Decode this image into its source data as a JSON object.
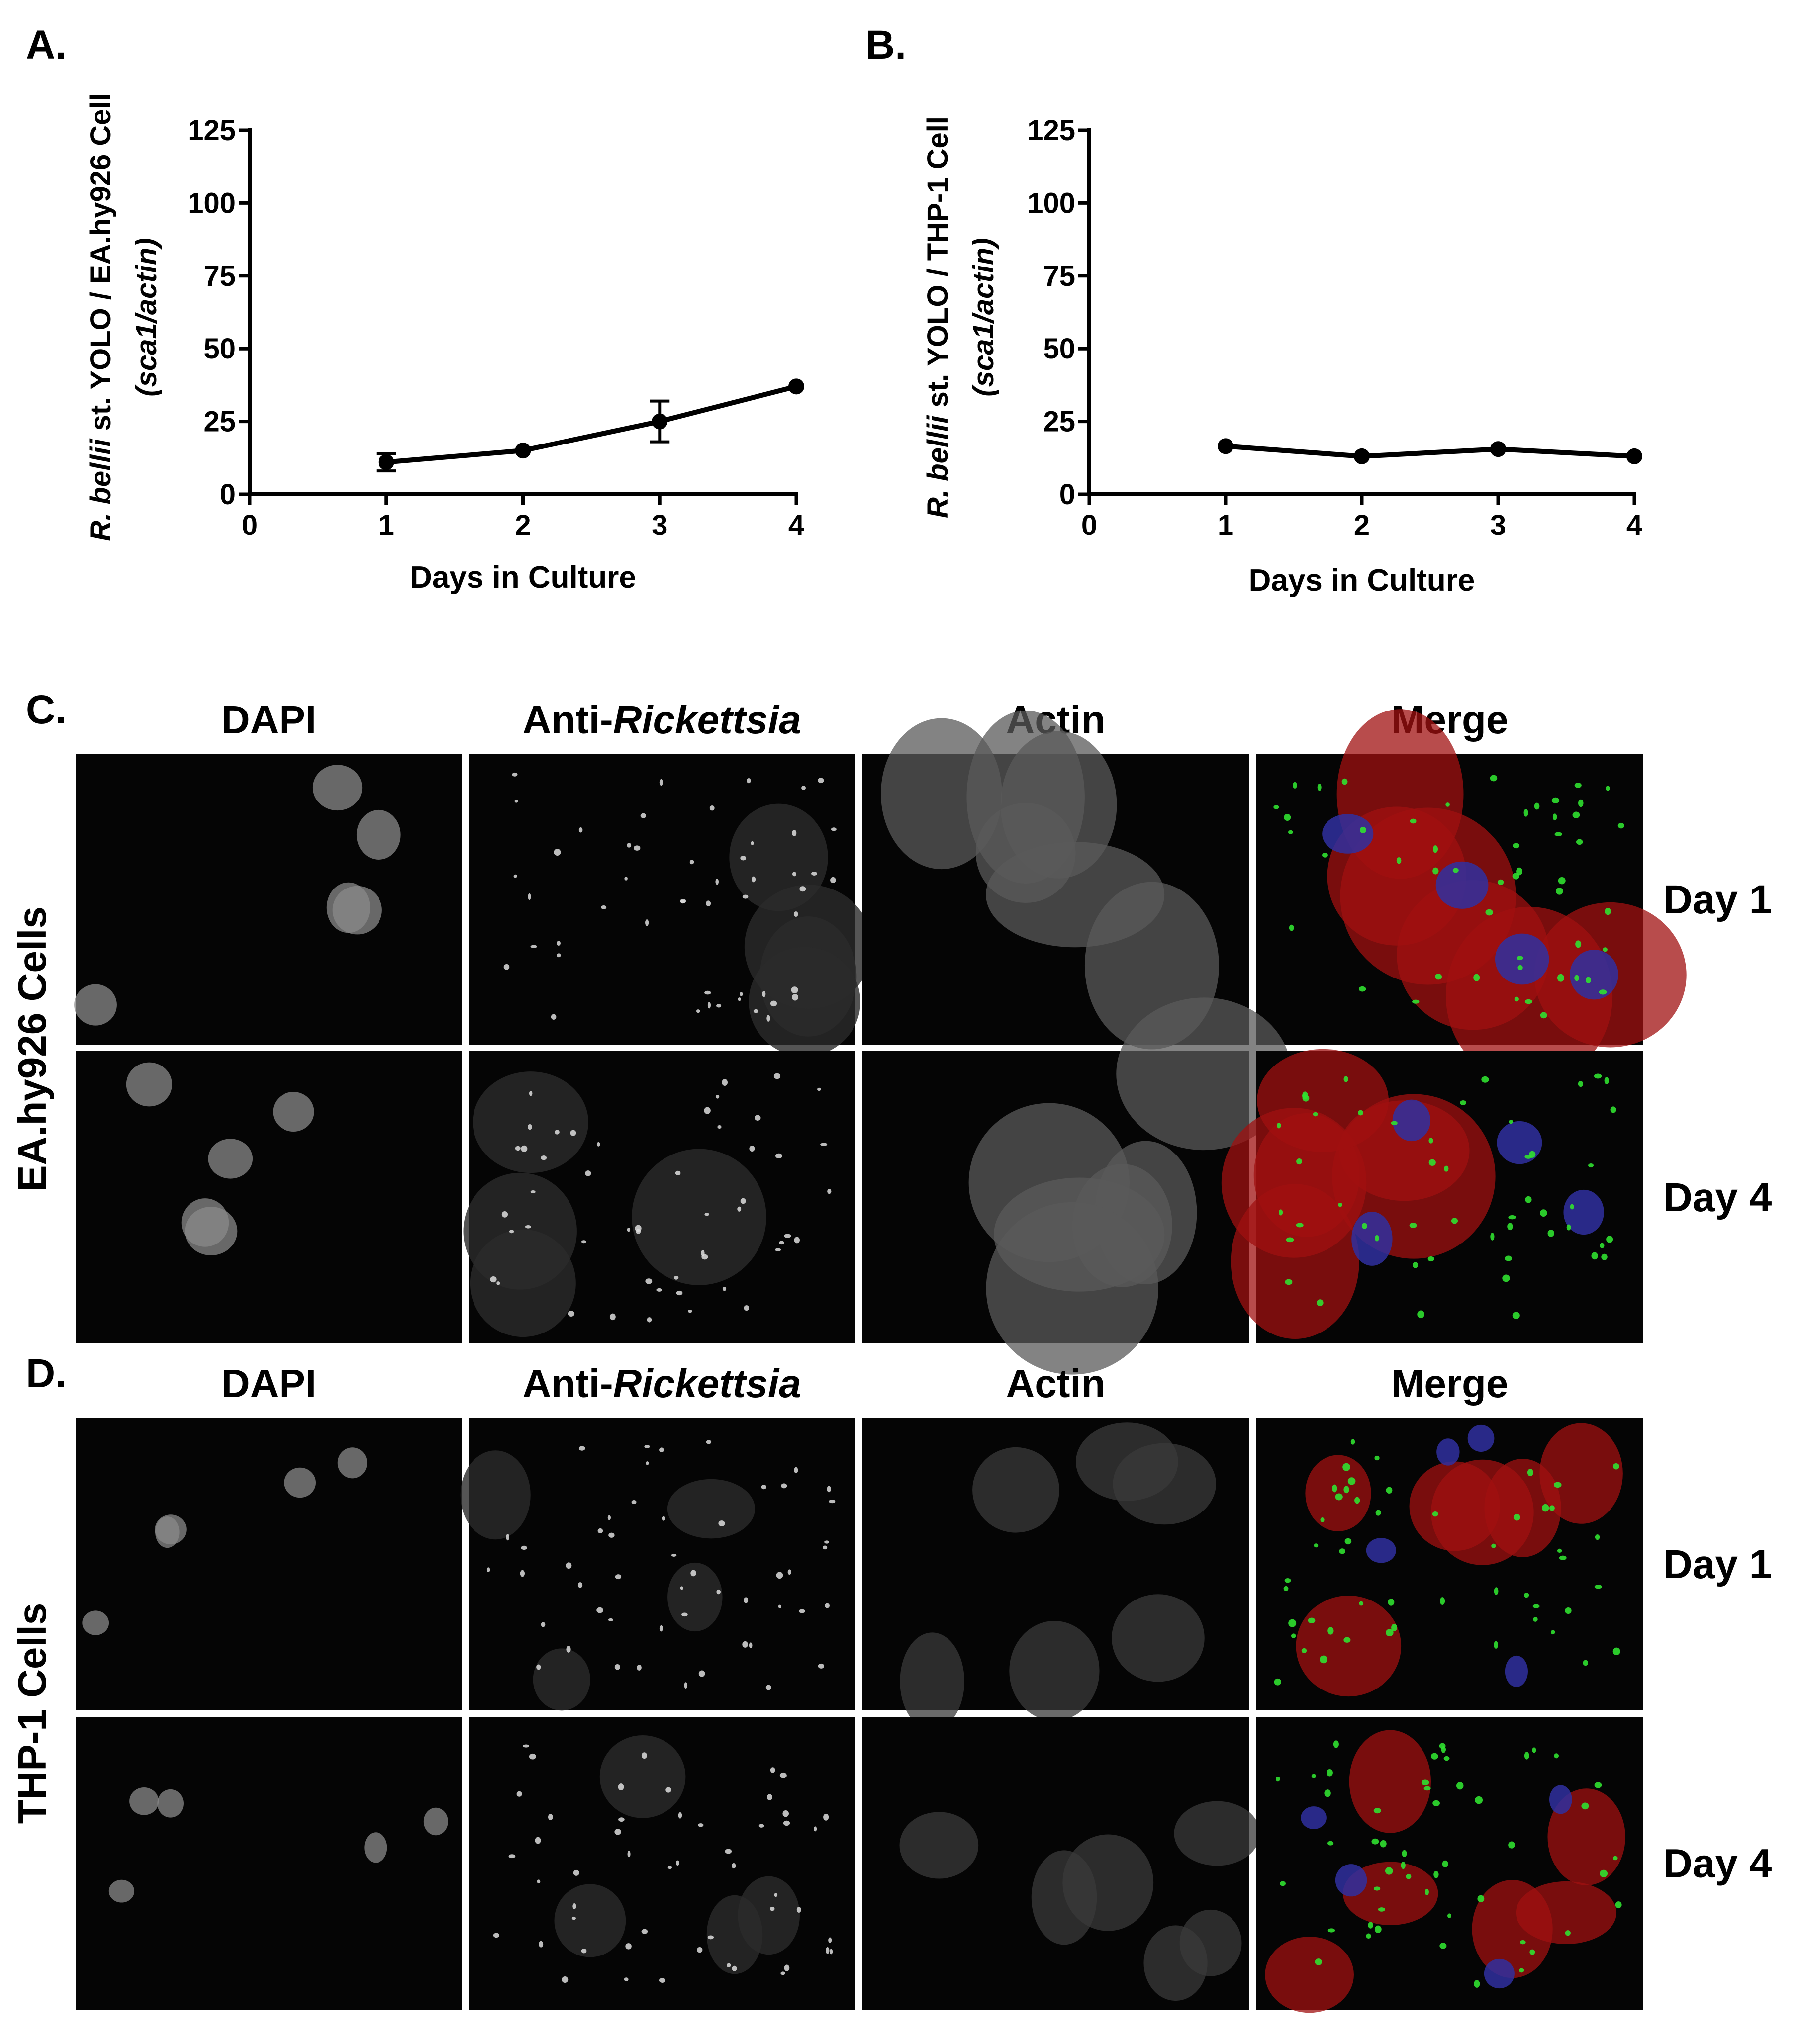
{
  "chart_data": [
    {
      "type": "line",
      "panel_label": "A.",
      "ylabel": {
        "line1": [
          "R. bellii",
          " st. YOLO / EA.hy926 Cell"
        ],
        "line2": "(sca1/actin)"
      },
      "xlabel": "Days in Culture",
      "x": [
        1,
        2,
        3,
        4
      ],
      "values": [
        11,
        15,
        25,
        37
      ],
      "errors": [
        3,
        null,
        7,
        null
      ],
      "color": "#000000",
      "xlim": [
        0,
        4
      ],
      "xticks": [
        0,
        1,
        2,
        3,
        4
      ],
      "ylim": [
        0,
        125
      ],
      "yticks": [
        0,
        25,
        50,
        75,
        100,
        125
      ]
    },
    {
      "type": "line",
      "panel_label": "B.",
      "ylabel": {
        "line1": [
          "R. bellii",
          " st. YOLO / THP-1 Cell"
        ],
        "line2": "(sca1/actin)"
      },
      "xlabel": "Days in Culture",
      "x": [
        1,
        2,
        3,
        4
      ],
      "values": [
        16.5,
        13,
        15.5,
        13
      ],
      "color": "#000000",
      "xlim": [
        0,
        4
      ],
      "xticks": [
        0,
        1,
        2,
        3,
        4
      ],
      "ylim": [
        0,
        125
      ],
      "yticks": [
        0,
        25,
        50,
        75,
        100,
        125
      ]
    }
  ],
  "image_panels": [
    {
      "label": "C.",
      "side_label": "EA.hy926 Cells",
      "columns": [
        [
          "DAPI"
        ],
        [
          "Anti-",
          "Rickettsia"
        ],
        [
          "Actin"
        ],
        [
          "Merge"
        ]
      ],
      "rows": [
        "Day 1",
        "Day 4"
      ]
    },
    {
      "label": "D.",
      "side_label": "THP-1 Cells",
      "columns": [
        [
          "DAPI"
        ],
        [
          "Anti-",
          "Rickettsia"
        ],
        [
          "Actin"
        ],
        [
          "Merge"
        ]
      ],
      "rows": [
        "Day 1",
        "Day 4"
      ]
    }
  ]
}
